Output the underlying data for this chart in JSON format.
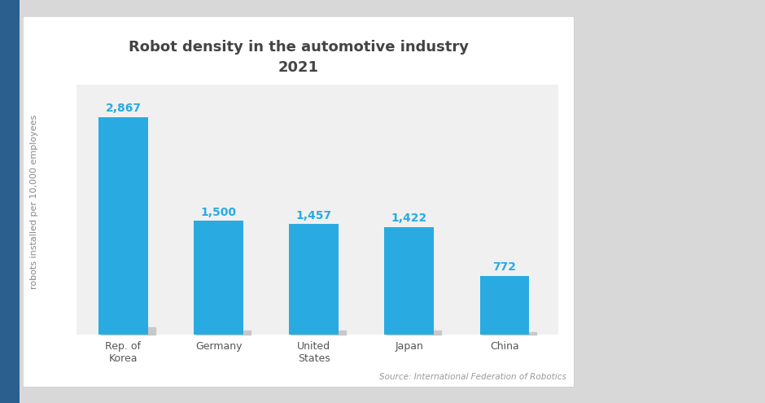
{
  "title_line1": "Robot density in the automotive industry",
  "title_line2": "2021",
  "categories": [
    "Rep. of\nKorea",
    "Germany",
    "United\nStates",
    "Japan",
    "China"
  ],
  "values": [
    2867,
    1500,
    1457,
    1422,
    772
  ],
  "labels": [
    "2,867",
    "1,500",
    "1,457",
    "1,422",
    "772"
  ],
  "bar_color": "#29ABE2",
  "ylabel": "robots installed per 10,000 employees",
  "source": "Source: International Federation of Robotics",
  "outer_bg": "#d8d8d8",
  "left_stripe_color": "#2B5F8E",
  "card_bg": "#ffffff",
  "chart_area_bg": "#f0f0f0",
  "label_color": "#29ABE2",
  "title_color": "#444444",
  "ylabel_color": "#888888",
  "source_color": "#999999",
  "tick_color": "#555555",
  "ylim": [
    0,
    3300
  ],
  "title_fontsize": 13,
  "label_fontsize": 10,
  "tick_fontsize": 9,
  "ylabel_fontsize": 8,
  "source_fontsize": 7.5
}
